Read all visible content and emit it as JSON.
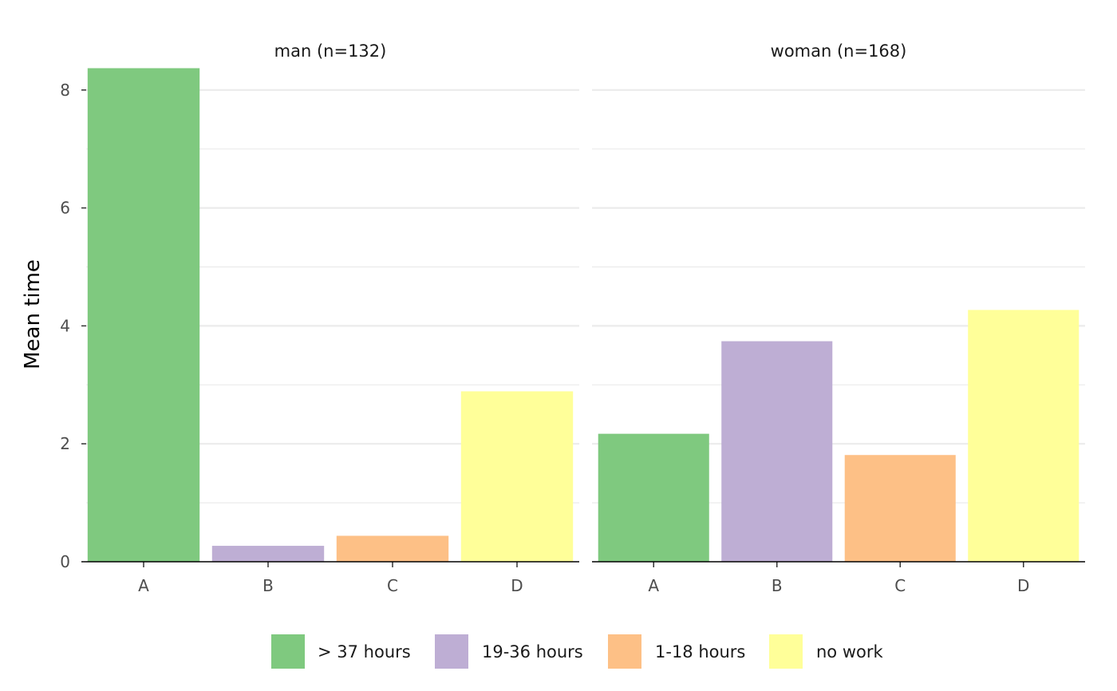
{
  "chart_data": {
    "type": "bar",
    "ylabel": "Mean time",
    "xlabel": "",
    "ylim": [
      0,
      8.4
    ],
    "yticks": [
      0,
      2,
      4,
      6,
      8
    ],
    "grid": true,
    "legend_position": "bottom",
    "categories": [
      "A",
      "B",
      "C",
      "D"
    ],
    "legend": [
      {
        "label": "> 37 hours",
        "color": "#7FC97F"
      },
      {
        "label": "19-36 hours",
        "color": "#BEAED4"
      },
      {
        "label": "1-18 hours",
        "color": "#FDC086"
      },
      {
        "label": "no work",
        "color": "#FFFF99"
      }
    ],
    "panels": [
      {
        "title": "man (n=132)",
        "values": [
          8.37,
          0.27,
          0.44,
          2.89
        ]
      },
      {
        "title": "woman (n=168)",
        "values": [
          2.17,
          3.74,
          1.81,
          4.27
        ]
      }
    ]
  }
}
